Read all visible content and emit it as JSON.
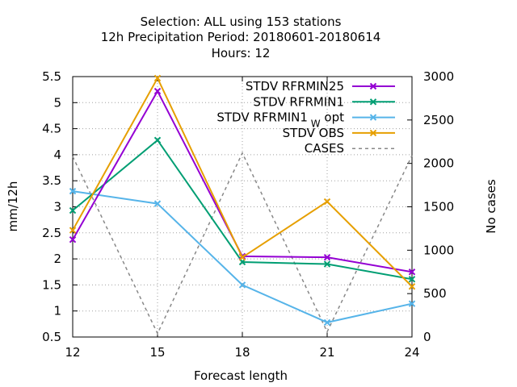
{
  "chart_data": {
    "type": "line",
    "title": [
      "Selection: ALL using   153 stations",
      "12h Precipitation   Period: 20180601-20180614",
      "Hours:  12"
    ],
    "xlabel": "Forecast length",
    "ylabel": "mm/12h",
    "y2label": "No cases",
    "x": [
      12,
      15,
      18,
      21,
      24
    ],
    "xlim": [
      12,
      24
    ],
    "ylim": [
      0.5,
      5.5
    ],
    "y2lim": [
      0,
      3000
    ],
    "xticks": [
      "12",
      "15",
      "18",
      "21",
      "24"
    ],
    "yticks": [
      "0.5",
      "1",
      "1.5",
      "2",
      "2.5",
      "3",
      "3.5",
      "4",
      "4.5",
      "5",
      "5.5"
    ],
    "y2ticks": [
      "0",
      "500",
      "1000",
      "1500",
      "2000",
      "2500",
      "3000"
    ],
    "grid": true,
    "legend_position": "top-right",
    "series": [
      {
        "name": "STDV RFRMIN25",
        "name_sub": "",
        "name_suffix": "",
        "axis": "y1",
        "color": "#9400d3",
        "dashed": false,
        "marker": "x",
        "values": [
          2.37,
          5.22,
          2.05,
          2.03,
          1.75
        ]
      },
      {
        "name": "STDV RFRMIN1",
        "name_sub": "",
        "name_suffix": "",
        "axis": "y1",
        "color": "#009e73",
        "dashed": false,
        "marker": "x",
        "values": [
          2.93,
          4.28,
          1.94,
          1.9,
          1.61
        ]
      },
      {
        "name": "STDV RFRMIN1",
        "name_sub": "W",
        "name_suffix": "opt",
        "axis": "y1",
        "color": "#56b4e9",
        "dashed": false,
        "marker": "x",
        "values": [
          3.3,
          3.06,
          1.5,
          0.78,
          1.14
        ]
      },
      {
        "name": "STDV OBS",
        "name_sub": "",
        "name_suffix": "",
        "axis": "y1",
        "color": "#e69f00",
        "dashed": false,
        "marker": "x",
        "values": [
          2.55,
          5.47,
          2.03,
          3.1,
          1.47
        ]
      },
      {
        "name": "CASES",
        "name_sub": "",
        "name_suffix": "",
        "axis": "y2",
        "color": "#888888",
        "dashed": true,
        "marker": "",
        "values": [
          2080,
          40,
          2120,
          60,
          2090
        ]
      }
    ]
  }
}
